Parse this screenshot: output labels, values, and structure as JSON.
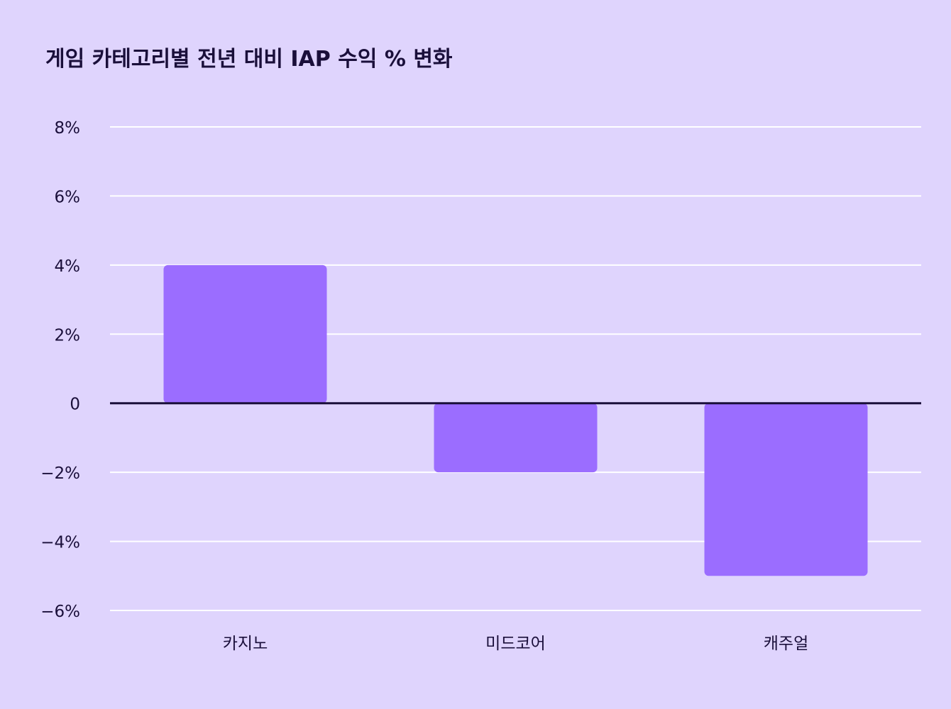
{
  "colors": {
    "background": "#dfd4fd",
    "bar": "#9b6dff",
    "gridline": "#ffffff",
    "zero_line": "#1a0f3a",
    "text": "#1a0f3a"
  },
  "chart_data": {
    "type": "bar",
    "title": "게임 카테고리별 전년 대비 IAP 수익 % 변화",
    "categories": [
      "카지노",
      "미드코어",
      "캐주얼"
    ],
    "values": [
      4,
      -2,
      -5
    ],
    "ylim": [
      -6,
      8
    ],
    "yticks": [
      8,
      6,
      4,
      2,
      0,
      -2,
      -4,
      -6
    ],
    "ytick_labels": [
      "8%",
      "6%",
      "4%",
      "2%",
      "0",
      "−2%",
      "−4%",
      "−6%"
    ],
    "grid": true,
    "xlabel": "",
    "ylabel": ""
  }
}
